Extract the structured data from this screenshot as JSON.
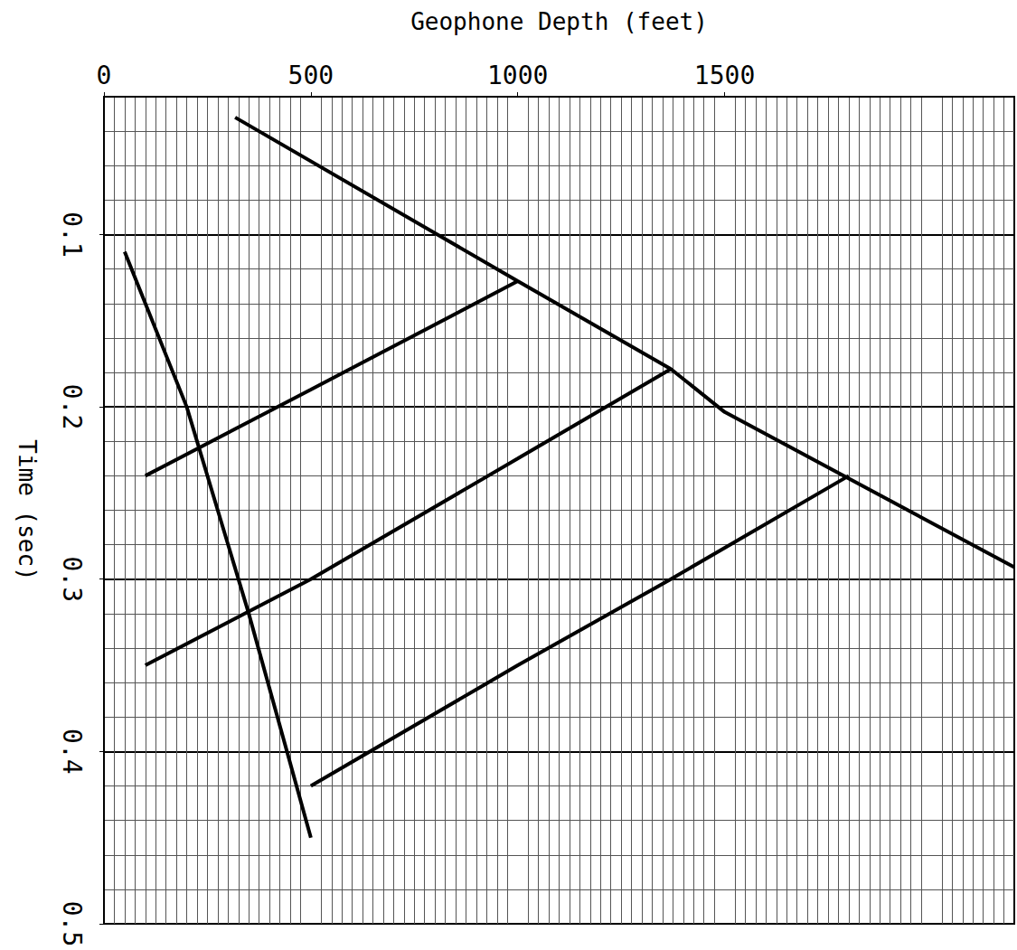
{
  "chart_data": {
    "type": "line",
    "x_label": "Geophone Depth (feet)",
    "y_label": "Time (sec)",
    "xlim": [
      0,
      2200
    ],
    "xticks": [
      0,
      500,
      1000,
      1500
    ],
    "ylim": [
      0.02,
      0.5
    ],
    "yticks": [
      0.1,
      0.2,
      0.3,
      0.4,
      0.5
    ],
    "grid": true,
    "series": [
      {
        "color": "#000000",
        "line_style": "solid",
        "x": [
          317,
          1000,
          1370,
          1500,
          2200
        ],
        "values": [
          0.032,
          0.127,
          0.178,
          0.203,
          0.293
        ]
      },
      {
        "color": "#000000",
        "line_style": "solid",
        "x": [
          1000,
          500,
          100
        ],
        "values": [
          0.127,
          0.19,
          0.24
        ]
      },
      {
        "color": "#000000",
        "line_style": "solid",
        "x": [
          1370,
          1000,
          500,
          100
        ],
        "values": [
          0.178,
          0.23,
          0.3,
          0.35
        ]
      },
      {
        "color": "#000000",
        "line_style": "solid",
        "x": [
          1800,
          1370,
          1000,
          500
        ],
        "values": [
          0.24,
          0.3,
          0.35,
          0.42
        ]
      },
      {
        "color": "#000000",
        "line_style": "solid",
        "x": [
          50,
          200,
          350,
          500
        ],
        "values": [
          0.11,
          0.2,
          0.32,
          0.45
        ]
      }
    ]
  }
}
